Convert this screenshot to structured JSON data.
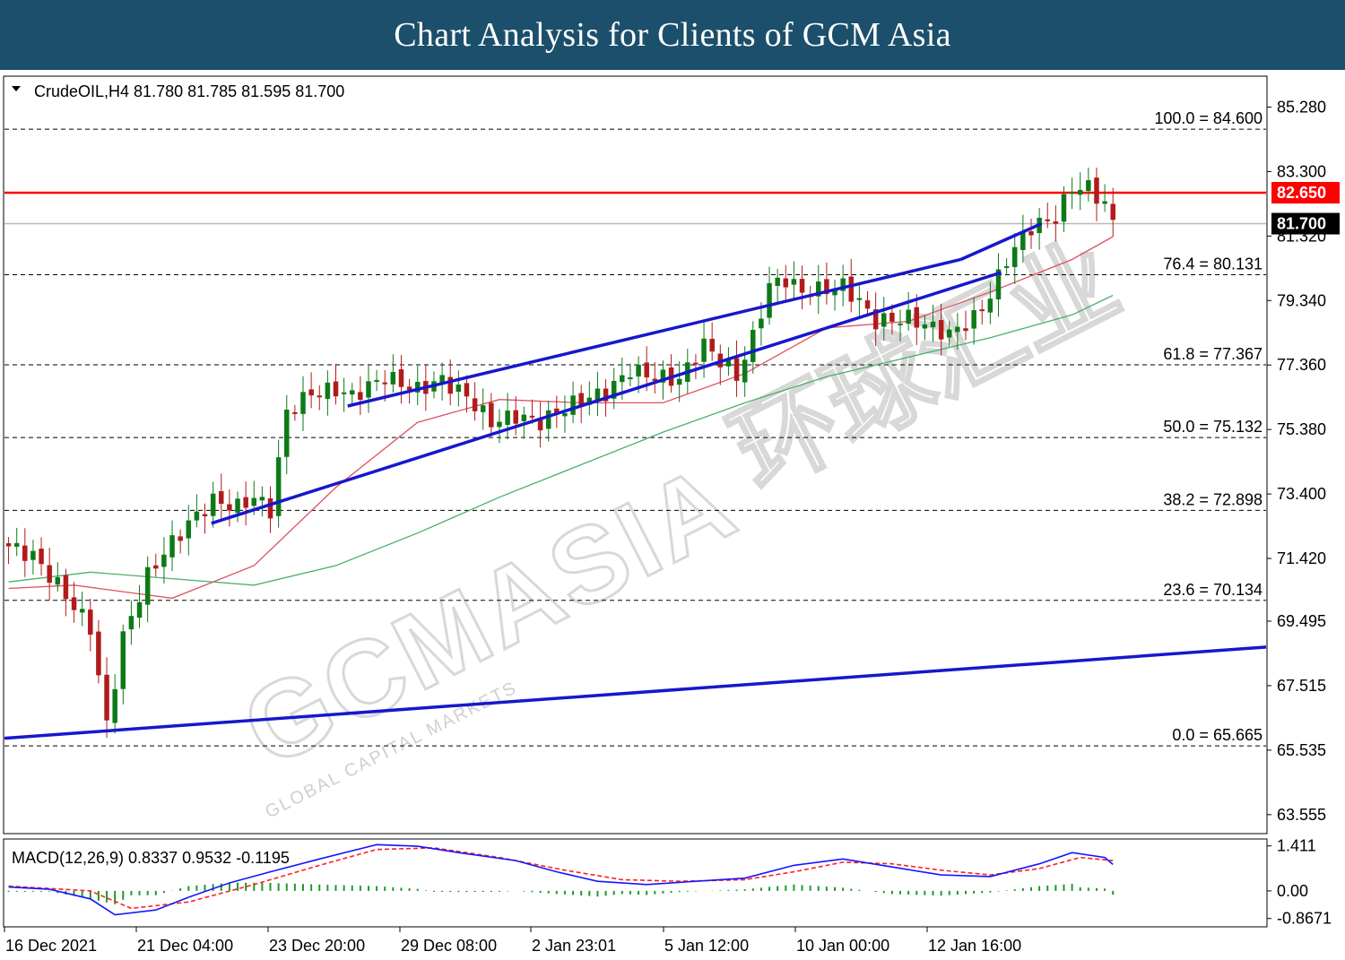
{
  "banner": {
    "title": "Chart Analysis for Clients of GCM Asia"
  },
  "symbol": {
    "header": "CrudeOIL,H4  81.780 81.785 81.595 81.700"
  },
  "watermark": {
    "main": "GCMASIA",
    "sub": "GLOBAL CAPITAL MARKETS",
    "cjk": "环球汇业"
  },
  "colors": {
    "banner": "#1b4f6b",
    "candle_up": "#0d7a17",
    "candle_down": "#b11b1b",
    "channel": "#1717cc",
    "resistance": "#ff0000",
    "ma_fast": "#e05060",
    "ma_slow": "#4caf6a",
    "macd_line": "#1515ff",
    "macd_signal": "#ff2020",
    "macd_hist": "#1a9b2a"
  },
  "chart_data": [
    {
      "type": "candlestick",
      "timeframe": "H4",
      "ylim": [
        63.0,
        86.2
      ],
      "y_ticks": [
        "85.280",
        "83.300",
        "81.320",
        "79.340",
        "77.360",
        "75.380",
        "73.400",
        "71.420",
        "69.495",
        "67.515",
        "65.535",
        "63.555"
      ],
      "x_ticks": [
        "16 Dec 2021",
        "21 Dec 04:00",
        "23 Dec 20:00",
        "29 Dec 08:00",
        "2 Jan 23:01",
        "5 Jan 12:00",
        "10 Jan 00:00",
        "12 Jan 16:00"
      ],
      "last_price": {
        "label": "81.700",
        "value": 81.7
      },
      "resistance": {
        "label": "82.650",
        "value": 82.65
      },
      "fibonacci": [
        {
          "label": "100.0 = 84.600",
          "value": 84.6
        },
        {
          "label": "76.4 = 80.131",
          "value": 80.131
        },
        {
          "label": "61.8 = 77.367",
          "value": 77.367
        },
        {
          "label": "50.0 = 75.132",
          "value": 75.132
        },
        {
          "label": "38.2 = 72.898",
          "value": 72.898
        },
        {
          "label": "23.6 = 70.134",
          "value": 70.134
        },
        {
          "label": "0.0 = 65.665",
          "value": 65.665
        }
      ],
      "trendlines": [
        {
          "name": "channel-upper",
          "from": [
            0.272,
            76.1
          ],
          "to": [
            0.758,
            80.6
          ]
        },
        {
          "name": "channel-middle",
          "from": [
            0.758,
            80.6
          ],
          "to": [
            0.822,
            81.7
          ]
        },
        {
          "name": "channel-lower",
          "from": [
            0.164,
            72.5
          ],
          "to": [
            0.79,
            80.2
          ]
        },
        {
          "name": "long-term-support",
          "from": [
            0.0,
            65.9
          ],
          "to": [
            1.0,
            68.7
          ]
        }
      ],
      "anchors": [
        [
          0,
          71.8
        ],
        [
          3,
          71.5
        ],
        [
          6,
          70.6
        ],
        [
          10,
          69.3
        ],
        [
          12,
          66.3
        ],
        [
          14,
          69.0
        ],
        [
          17,
          70.9
        ],
        [
          19,
          71.6
        ],
        [
          22,
          72.5
        ],
        [
          25,
          73.2
        ],
        [
          28,
          73.0
        ],
        [
          30,
          73.3
        ],
        [
          32,
          72.9
        ],
        [
          34,
          75.9
        ],
        [
          37,
          76.5
        ],
        [
          40,
          76.6
        ],
        [
          42,
          76.4
        ],
        [
          46,
          77.0
        ],
        [
          50,
          76.6
        ],
        [
          53,
          76.9
        ],
        [
          56,
          76.4
        ],
        [
          59,
          75.6
        ],
        [
          62,
          75.8
        ],
        [
          65,
          75.6
        ],
        [
          67,
          75.9
        ],
        [
          70,
          76.3
        ],
        [
          73,
          76.5
        ],
        [
          76,
          77.2
        ],
        [
          79,
          77.0
        ],
        [
          82,
          76.9
        ],
        [
          85,
          78.0
        ],
        [
          87,
          77.5
        ],
        [
          89,
          77.0
        ],
        [
          91,
          78.2
        ],
        [
          93,
          79.8
        ],
        [
          95,
          80.0
        ],
        [
          97,
          79.6
        ],
        [
          100,
          79.7
        ],
        [
          102,
          79.8
        ],
        [
          104,
          79.3
        ],
        [
          106,
          78.7
        ],
        [
          110,
          78.8
        ],
        [
          113,
          78.5
        ],
        [
          115,
          78.3
        ],
        [
          118,
          78.8
        ],
        [
          120,
          79.5
        ],
        [
          122,
          80.6
        ],
        [
          125,
          81.6
        ],
        [
          128,
          81.9
        ],
        [
          130,
          82.8
        ],
        [
          132,
          82.8
        ],
        [
          134,
          82.3
        ],
        [
          135,
          81.7
        ]
      ],
      "series": [
        {
          "name": "MA fast",
          "points": [
            [
              0,
              70.5
            ],
            [
              8,
              70.6
            ],
            [
              20,
              70.2
            ],
            [
              30,
              71.2
            ],
            [
              40,
              73.6
            ],
            [
              50,
              75.6
            ],
            [
              60,
              76.3
            ],
            [
              70,
              76.2
            ],
            [
              80,
              76.2
            ],
            [
              90,
              77.1
            ],
            [
              100,
              78.5
            ],
            [
              110,
              78.7
            ],
            [
              120,
              79.6
            ],
            [
              130,
              80.6
            ],
            [
              135,
              81.3
            ]
          ]
        },
        {
          "name": "MA slow",
          "points": [
            [
              0,
              70.7
            ],
            [
              10,
              71.0
            ],
            [
              20,
              70.8
            ],
            [
              30,
              70.6
            ],
            [
              40,
              71.2
            ],
            [
              50,
              72.2
            ],
            [
              60,
              73.3
            ],
            [
              70,
              74.3
            ],
            [
              80,
              75.3
            ],
            [
              90,
              76.2
            ],
            [
              100,
              77.0
            ],
            [
              110,
              77.6
            ],
            [
              120,
              78.2
            ],
            [
              130,
              78.9
            ],
            [
              135,
              79.5
            ]
          ]
        }
      ]
    },
    {
      "type": "macd",
      "label": "MACD(12,26,9) 0.8337 0.9532 -0.1195",
      "ylim": [
        -1.1,
        1.6
      ],
      "y_ticks": [
        "1.411",
        "0.00",
        "-0.8671"
      ],
      "macd": [
        [
          0,
          0.12
        ],
        [
          5,
          0.05
        ],
        [
          10,
          -0.25
        ],
        [
          13,
          -0.75
        ],
        [
          18,
          -0.6
        ],
        [
          22,
          -0.2
        ],
        [
          27,
          0.25
        ],
        [
          32,
          0.6
        ],
        [
          38,
          1.0
        ],
        [
          45,
          1.45
        ],
        [
          50,
          1.4
        ],
        [
          55,
          1.2
        ],
        [
          62,
          0.95
        ],
        [
          67,
          0.6
        ],
        [
          72,
          0.3
        ],
        [
          78,
          0.2
        ],
        [
          84,
          0.3
        ],
        [
          90,
          0.4
        ],
        [
          96,
          0.8
        ],
        [
          102,
          1.0
        ],
        [
          108,
          0.75
        ],
        [
          114,
          0.5
        ],
        [
          120,
          0.45
        ],
        [
          126,
          0.85
        ],
        [
          130,
          1.2
        ],
        [
          134,
          1.05
        ],
        [
          135,
          0.83
        ]
      ],
      "signal": [
        [
          0,
          0.15
        ],
        [
          10,
          0.0
        ],
        [
          15,
          -0.55
        ],
        [
          22,
          -0.35
        ],
        [
          30,
          0.2
        ],
        [
          38,
          0.8
        ],
        [
          45,
          1.3
        ],
        [
          52,
          1.35
        ],
        [
          60,
          1.05
        ],
        [
          68,
          0.65
        ],
        [
          75,
          0.35
        ],
        [
          82,
          0.3
        ],
        [
          90,
          0.35
        ],
        [
          96,
          0.6
        ],
        [
          102,
          0.9
        ],
        [
          108,
          0.85
        ],
        [
          114,
          0.65
        ],
        [
          120,
          0.5
        ],
        [
          126,
          0.7
        ],
        [
          131,
          1.05
        ],
        [
          135,
          0.95
        ]
      ]
    }
  ]
}
